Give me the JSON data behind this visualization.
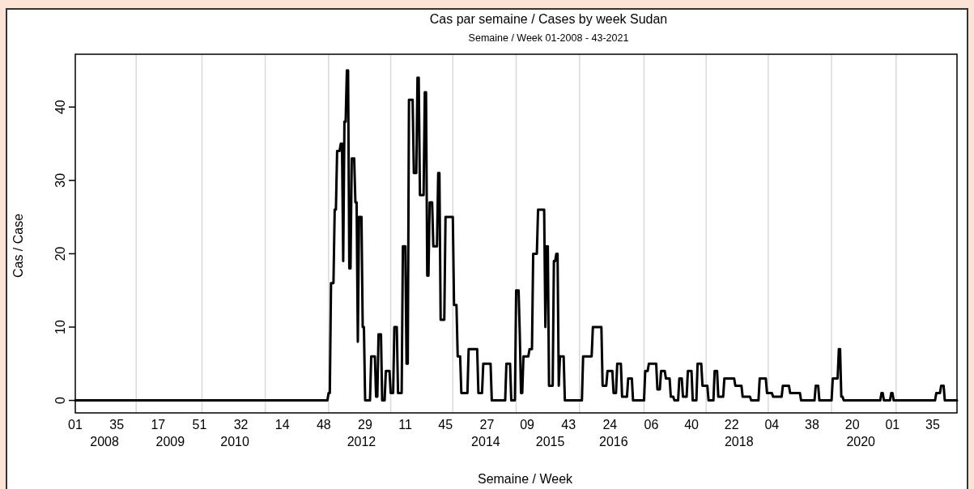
{
  "chart_data": {
    "type": "line",
    "title": "Cas par semaine / Cases by week Sudan",
    "subtitle": "Semaine / Week 01-2008 - 43-2021",
    "xlabel": "Semaine / Week",
    "ylabel": "Cas / Case",
    "ylim": [
      -1.7,
      47.2
    ],
    "yticks": [
      0,
      10,
      20,
      30,
      40
    ],
    "categories": [
      "01",
      null,
      null,
      null,
      null,
      null,
      null,
      null,
      null,
      null,
      null,
      null,
      null,
      null,
      null,
      null,
      null,
      null,
      null,
      null,
      null,
      null,
      null,
      null,
      "\n2008",
      null,
      null,
      null,
      null,
      null,
      null,
      null,
      null,
      null,
      "35",
      null,
      null,
      null,
      null,
      null,
      null,
      null,
      null,
      null,
      null,
      null,
      null,
      null,
      null,
      null,
      null,
      null,
      null,
      null,
      null,
      null,
      null,
      null,
      null,
      null,
      null,
      null,
      null,
      null,
      null,
      null,
      null,
      null,
      "17",
      null,
      null,
      null,
      null,
      null,
      null,
      null,
      null,
      null,
      "\n2009",
      null,
      null,
      null,
      null,
      null,
      null,
      null,
      null,
      null,
      null,
      null,
      null,
      null,
      null,
      null,
      null,
      null,
      null,
      null,
      null,
      null,
      null,
      null,
      "51",
      null,
      null,
      null,
      null,
      null,
      null,
      null,
      null,
      null,
      null,
      null,
      null,
      null,
      null,
      null,
      null,
      null,
      null,
      null,
      null,
      null,
      null,
      null,
      null,
      null,
      null,
      null,
      null,
      "\n2010",
      null,
      null,
      null,
      null,
      "32",
      null,
      null,
      null,
      null,
      null,
      null,
      null,
      null,
      null,
      null,
      null,
      null,
      null,
      null,
      null,
      null,
      null,
      null,
      null,
      null,
      null,
      null,
      null,
      null,
      null,
      null,
      null,
      null,
      null,
      null,
      null,
      null,
      null,
      "14",
      null,
      null,
      null,
      null,
      null,
      null,
      null,
      null,
      null,
      null,
      null,
      null,
      null,
      null,
      null,
      null,
      null,
      null,
      null,
      null,
      null,
      null,
      null,
      null,
      null,
      null,
      null,
      null,
      null,
      null,
      null,
      null,
      null,
      "48",
      null,
      null,
      null,
      null,
      null,
      null,
      null,
      null,
      null,
      null,
      null,
      null,
      null,
      null,
      null,
      null,
      null,
      null,
      null,
      null,
      null,
      null,
      null,
      null,
      null,
      null,
      null,
      null,
      null,
      null,
      "\n2012",
      null,
      null,
      "29",
      null,
      null,
      null,
      null,
      null,
      null,
      null,
      null,
      null,
      null,
      null,
      null,
      null,
      null,
      null,
      null,
      null,
      null,
      null,
      null,
      null,
      null,
      null,
      null,
      null,
      null,
      null,
      null,
      null,
      null,
      null,
      null,
      "11",
      null,
      null,
      null,
      null,
      null,
      null,
      null,
      null,
      null,
      null,
      null,
      null,
      null,
      null,
      null,
      null,
      null,
      null,
      null,
      null,
      null,
      null,
      null,
      null,
      null,
      null,
      null,
      null,
      null,
      null,
      null,
      null,
      "45",
      null,
      null,
      null,
      null,
      null,
      null,
      null,
      null,
      null,
      null,
      null,
      null,
      null,
      null,
      null,
      null,
      null,
      null,
      null,
      null,
      null,
      null,
      null,
      null,
      null,
      null,
      null,
      null,
      null,
      null,
      null,
      null,
      "\n2014",
      "27",
      null,
      null,
      null,
      null,
      null,
      null,
      null,
      null,
      null,
      null,
      null,
      null,
      null,
      null,
      null,
      null,
      null,
      null,
      null,
      null,
      null,
      null,
      null,
      null,
      null,
      null,
      null,
      null,
      null,
      null,
      null,
      null,
      "09",
      null,
      null,
      null,
      null,
      null,
      null,
      null,
      null,
      null,
      null,
      null,
      null,
      null,
      null,
      null,
      null,
      null,
      null,
      "\n2015",
      null,
      null,
      null,
      null,
      null,
      null,
      null,
      null,
      null,
      null,
      null,
      null,
      null,
      null,
      "43",
      null,
      null,
      null,
      null,
      null,
      null,
      null,
      null,
      null,
      null,
      null,
      null,
      null,
      null,
      null,
      null,
      null,
      null,
      null,
      null,
      null,
      null,
      null,
      null,
      null,
      null,
      null,
      null,
      null,
      null,
      null,
      null,
      null,
      "24",
      null,
      null,
      "\n2016",
      null,
      null,
      null,
      null,
      null,
      null,
      null,
      null,
      null,
      null,
      null,
      null,
      null,
      null,
      null,
      null,
      null,
      null,
      null,
      null,
      null,
      null,
      null,
      null,
      null,
      null,
      null,
      null,
      null,
      null,
      "06",
      null,
      null,
      null,
      null,
      null,
      null,
      null,
      null,
      null,
      null,
      null,
      null,
      null,
      null,
      null,
      null,
      null,
      null,
      null,
      null,
      null,
      null,
      null,
      null,
      null,
      null,
      null,
      null,
      null,
      null,
      null,
      null,
      "40",
      null,
      null,
      null,
      null,
      null,
      null,
      null,
      null,
      null,
      null,
      null,
      null,
      null,
      null,
      null,
      null,
      null,
      null,
      null,
      null,
      null,
      null,
      null,
      null,
      null,
      null,
      null,
      null,
      null,
      null,
      null,
      null,
      "22",
      null,
      null,
      null,
      null,
      null,
      "\n2018",
      null,
      null,
      null,
      null,
      null,
      null,
      null,
      null,
      null,
      null,
      null,
      null,
      null,
      null,
      null,
      null,
      null,
      null,
      null,
      null,
      null,
      null,
      null,
      null,
      null,
      null,
      "04",
      null,
      null,
      null,
      null,
      null,
      null,
      null,
      null,
      null,
      null,
      null,
      null,
      null,
      null,
      null,
      null,
      null,
      null,
      null,
      null,
      null,
      null,
      null,
      null,
      null,
      null,
      null,
      null,
      null,
      null,
      null,
      null,
      "38",
      null,
      null,
      null,
      null,
      null,
      null,
      null,
      null,
      null,
      null,
      null,
      null,
      null,
      null,
      null,
      null,
      null,
      null,
      null,
      null,
      null,
      null,
      null,
      null,
      null,
      null,
      null,
      null,
      null,
      null,
      null,
      null,
      "20",
      null,
      null,
      null,
      null,
      null,
      null,
      "\n2020",
      null,
      null,
      null,
      null,
      null,
      null,
      null,
      null,
      null,
      null,
      null,
      null,
      null,
      null,
      null,
      null,
      null,
      null,
      null,
      null,
      null,
      null,
      null,
      null,
      null,
      "01",
      null,
      null,
      null,
      null,
      null,
      null,
      null,
      null,
      null,
      null,
      null,
      null,
      null,
      null,
      null,
      null,
      null,
      null,
      null,
      null,
      null,
      null,
      null,
      null,
      null,
      null,
      null,
      null,
      null,
      null,
      null,
      null,
      "35",
      null,
      null,
      null,
      null,
      null,
      null,
      null,
      null,
      null,
      null,
      null,
      null,
      null,
      null,
      null,
      null,
      null,
      null,
      null,
      null
    ],
    "series": [
      {
        "color": "#000000",
        "values": [
          0,
          0,
          0,
          0,
          0,
          0,
          0,
          0,
          0,
          0,
          0,
          0,
          0,
          0,
          0,
          0,
          0,
          0,
          0,
          0,
          0,
          0,
          0,
          0,
          0,
          0,
          0,
          0,
          0,
          0,
          0,
          0,
          0,
          0,
          0,
          0,
          0,
          0,
          0,
          0,
          0,
          0,
          0,
          0,
          0,
          0,
          0,
          0,
          0,
          0,
          0,
          0,
          0,
          0,
          0,
          0,
          0,
          0,
          0,
          0,
          0,
          0,
          0,
          0,
          0,
          0,
          0,
          0,
          0,
          0,
          0,
          0,
          0,
          0,
          0,
          0,
          0,
          0,
          0,
          0,
          0,
          0,
          0,
          0,
          0,
          0,
          0,
          0,
          0,
          0,
          0,
          0,
          0,
          0,
          0,
          0,
          0,
          0,
          0,
          0,
          0,
          0,
          0,
          0,
          0,
          0,
          0,
          0,
          0,
          0,
          0,
          0,
          0,
          0,
          0,
          0,
          0,
          0,
          0,
          0,
          0,
          0,
          0,
          0,
          0,
          0,
          0,
          0,
          0,
          0,
          0,
          0,
          0,
          0,
          0,
          0,
          0,
          0,
          0,
          0,
          0,
          0,
          0,
          0,
          0,
          0,
          0,
          0,
          0,
          0,
          0,
          0,
          0,
          0,
          0,
          0,
          0,
          0,
          0,
          0,
          0,
          0,
          0,
          0,
          0,
          0,
          0,
          0,
          0,
          0,
          0,
          0,
          0,
          0,
          0,
          0,
          0,
          0,
          0,
          0,
          0,
          0,
          0,
          0,
          0,
          0,
          0,
          0,
          0,
          0,
          0,
          0,
          0,
          0,
          0,
          0,
          0,
          0,
          0,
          0,
          0,
          0,
          0,
          0,
          0,
          0,
          0,
          0,
          1,
          1,
          16,
          16,
          16,
          26,
          26,
          34,
          34,
          34,
          35,
          35,
          19,
          38,
          38,
          45,
          45,
          18,
          18,
          33,
          33,
          33,
          27,
          27,
          8,
          25,
          25,
          25,
          10,
          10,
          0,
          0,
          0,
          0,
          0,
          6,
          6,
          6,
          6,
          0.5,
          0.5,
          9,
          9,
          9,
          0,
          0,
          0,
          4,
          4,
          4,
          4,
          1,
          1,
          1,
          10,
          10,
          10,
          1,
          1,
          1,
          1,
          21,
          21,
          21,
          5,
          5,
          41,
          41,
          41,
          41,
          31,
          31,
          31,
          44,
          44,
          28,
          28,
          28,
          28,
          42,
          42,
          17,
          17,
          27,
          27,
          27,
          21,
          21,
          21,
          21,
          31,
          31,
          11,
          11,
          11,
          11,
          25,
          25,
          25,
          25,
          25,
          25,
          25,
          13,
          13,
          13,
          6,
          6,
          6,
          1,
          1,
          1,
          1,
          1,
          1,
          7,
          7,
          7,
          7,
          7,
          7,
          7,
          7,
          1,
          1,
          1,
          1,
          5,
          5,
          5,
          5,
          5,
          5,
          5,
          0,
          0,
          0,
          0,
          0,
          0,
          0,
          0,
          0,
          0,
          0,
          0,
          5,
          5,
          5,
          5,
          0,
          0,
          0,
          0,
          15,
          15,
          15,
          9,
          1,
          1,
          6,
          6,
          6,
          6,
          6,
          7,
          7,
          7,
          20,
          20,
          20,
          20,
          26,
          26,
          26,
          26,
          26,
          26,
          10,
          21,
          21,
          2,
          2,
          2,
          2,
          19,
          19,
          20,
          20,
          2,
          6,
          6,
          6,
          6,
          0,
          0,
          0,
          0,
          0,
          0,
          0,
          0,
          0,
          0,
          0,
          0,
          0,
          0,
          0,
          6,
          6,
          6,
          6,
          6,
          6,
          6,
          6,
          10,
          10,
          10,
          10,
          10,
          10,
          10,
          10,
          2,
          2,
          2,
          2,
          4,
          4,
          4,
          4,
          4,
          1,
          1,
          1,
          5,
          5,
          5,
          5,
          0.5,
          0.5,
          0.5,
          0.5,
          0.5,
          3,
          3,
          3,
          3,
          0,
          0,
          0,
          0,
          0,
          0,
          0,
          0,
          0,
          0,
          4,
          4,
          4,
          5,
          5,
          5,
          5,
          5,
          5,
          5,
          1.5,
          1.5,
          1.5,
          4,
          4,
          4,
          4,
          3,
          3,
          3,
          3,
          0.5,
          0.5,
          0.5,
          0,
          0,
          0,
          0,
          3,
          3,
          3,
          0.5,
          0.5,
          0.5,
          0.5,
          4,
          4,
          4,
          4,
          0,
          0,
          0,
          0,
          5,
          5,
          5,
          5,
          2,
          2,
          2,
          2,
          2,
          0,
          0,
          0,
          0,
          0,
          4,
          4,
          4,
          0.5,
          0.5,
          0.5,
          0.5,
          0.5,
          3,
          3,
          3,
          3,
          3,
          3,
          3,
          3,
          3,
          2,
          2,
          2,
          2,
          2,
          2,
          0.5,
          0.5,
          0.5,
          0.5,
          0.5,
          0.5,
          0.5,
          0,
          0,
          0,
          0,
          0,
          0,
          0,
          3,
          3,
          3,
          3,
          3,
          3,
          1,
          1,
          1,
          1,
          1,
          0.5,
          0.5,
          0.5,
          0.5,
          0.5,
          0.5,
          0.5,
          0.5,
          2,
          2,
          2,
          2,
          2,
          2,
          1,
          1,
          1,
          1,
          1,
          1,
          1,
          1,
          1,
          0,
          0,
          0,
          0,
          0,
          0,
          0,
          0,
          0,
          0,
          0,
          0,
          2,
          2,
          2,
          0,
          0,
          0,
          0,
          0,
          0,
          0,
          0,
          0,
          0,
          0,
          3,
          3,
          3,
          3,
          3,
          7,
          7,
          0.5,
          0.5,
          0,
          0,
          0,
          0,
          0,
          0,
          0,
          0,
          0,
          0,
          0,
          0,
          0,
          0,
          0,
          0,
          0,
          0,
          0,
          0,
          0,
          0,
          0,
          0,
          0,
          0,
          0,
          0,
          0,
          0,
          0,
          1,
          1,
          0,
          0,
          0,
          0,
          0,
          0,
          1,
          1,
          0,
          0,
          0,
          0,
          0,
          0,
          0,
          0,
          0,
          0,
          0,
          0,
          0,
          0,
          0,
          0,
          0,
          0,
          0,
          0,
          0,
          0,
          0,
          0,
          0,
          0,
          0,
          0,
          0,
          0,
          0,
          0,
          0,
          0,
          0,
          1,
          1,
          1,
          1,
          2,
          2,
          2,
          0,
          0,
          0,
          0,
          0,
          0,
          0,
          0,
          0,
          0,
          0
        ]
      }
    ]
  }
}
